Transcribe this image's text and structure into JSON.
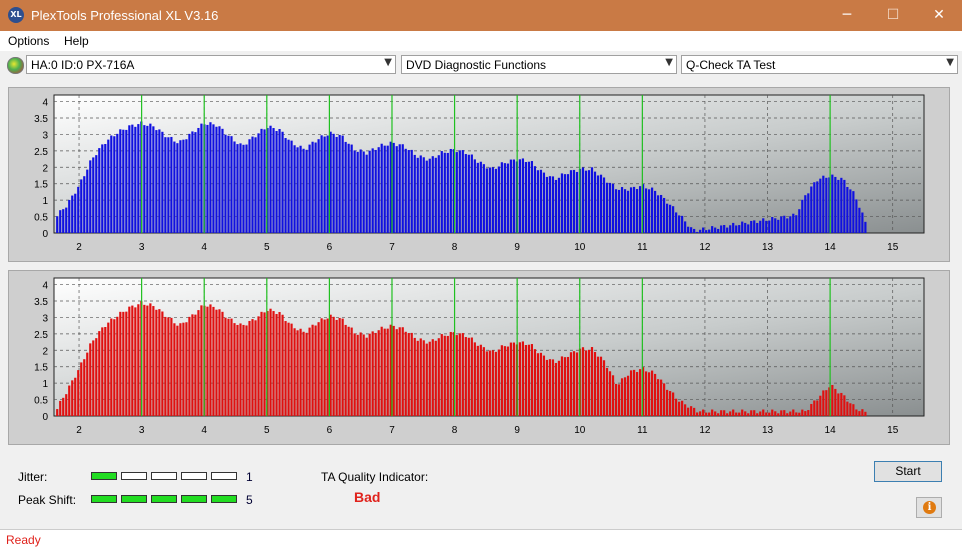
{
  "window": {
    "title": "PlexTools Professional XL V3.16",
    "icon": "XL",
    "minimize": "─",
    "maximize": "☐",
    "close": "✕"
  },
  "menu": {
    "items": [
      "Options",
      "Help"
    ]
  },
  "toolbar": {
    "drive": "HA:0 ID:0  PX-716A",
    "function": "DVD Diagnostic Functions",
    "test": "Q-Check TA Test"
  },
  "chart_data": [
    {
      "type": "bar",
      "series": [
        {
          "color": "#1010e0"
        }
      ],
      "xlim": [
        1.6,
        15.5
      ],
      "ylim": [
        0,
        4.2
      ],
      "x_ticks": [
        2,
        3,
        4,
        5,
        6,
        7,
        8,
        9,
        10,
        11,
        12,
        13,
        14,
        15
      ],
      "y_ticks": [
        0,
        0.5,
        1,
        1.5,
        2,
        2.5,
        3,
        3.5,
        4
      ],
      "y_tick_labels": [
        "0",
        "0.5",
        "1",
        "1.5",
        "2",
        "2.5",
        "3",
        "3.5",
        "4"
      ],
      "markers_x": [
        3,
        4,
        5,
        6,
        7,
        8,
        9,
        10,
        11,
        14
      ],
      "marker_color": "#20c020",
      "grid": true,
      "envelope_x": [
        1.65,
        1.8,
        2.0,
        2.2,
        2.4,
        2.6,
        2.8,
        3.0,
        3.2,
        3.4,
        3.6,
        3.8,
        4.0,
        4.2,
        4.4,
        4.6,
        4.8,
        5.0,
        5.2,
        5.4,
        5.6,
        5.8,
        6.0,
        6.2,
        6.4,
        6.6,
        6.8,
        7.0,
        7.2,
        7.4,
        7.6,
        7.8,
        8.0,
        8.2,
        8.4,
        8.6,
        8.8,
        9.0,
        9.2,
        9.4,
        9.6,
        9.8,
        10.0,
        10.2,
        10.4,
        10.6,
        10.8,
        11.0,
        11.2,
        11.4,
        11.6,
        11.8,
        11.9,
        13.45,
        13.6,
        13.8,
        14.0,
        14.2,
        14.4,
        14.6
      ],
      "envelope_y": [
        0.6,
        0.9,
        1.5,
        2.3,
        2.8,
        3.1,
        3.3,
        3.4,
        3.3,
        3.0,
        2.8,
        3.1,
        3.4,
        3.35,
        3.0,
        2.7,
        3.0,
        3.3,
        3.2,
        2.8,
        2.6,
        2.9,
        3.1,
        3.0,
        2.6,
        2.5,
        2.7,
        2.8,
        2.7,
        2.4,
        2.3,
        2.5,
        2.6,
        2.5,
        2.2,
        2.0,
        2.2,
        2.3,
        2.25,
        1.9,
        1.7,
        1.9,
        2.0,
        2.0,
        1.7,
        1.4,
        1.4,
        1.5,
        1.35,
        1.0,
        0.6,
        0.15,
        0.15,
        0.6,
        1.2,
        1.7,
        1.8,
        1.7,
        1.2,
        0.2
      ]
    },
    {
      "type": "bar",
      "series": [
        {
          "color": "#e01010"
        }
      ],
      "xlim": [
        1.6,
        15.5
      ],
      "ylim": [
        0,
        4.2
      ],
      "x_ticks": [
        2,
        3,
        4,
        5,
        6,
        7,
        8,
        9,
        10,
        11,
        12,
        13,
        14,
        15
      ],
      "y_ticks": [
        0,
        0.5,
        1,
        1.5,
        2,
        2.5,
        3,
        3.5,
        4
      ],
      "y_tick_labels": [
        "0",
        "0.5",
        "1",
        "1.5",
        "2",
        "2.5",
        "3",
        "3.5",
        "4"
      ],
      "markers_x": [
        3,
        4,
        5,
        6,
        7,
        8,
        9,
        10,
        11,
        14
      ],
      "marker_color": "#20c020",
      "grid": true,
      "envelope_x": [
        1.65,
        1.8,
        2.0,
        2.2,
        2.4,
        2.6,
        2.8,
        3.0,
        3.2,
        3.4,
        3.6,
        3.8,
        4.0,
        4.2,
        4.4,
        4.6,
        4.8,
        5.0,
        5.2,
        5.4,
        5.6,
        5.8,
        6.0,
        6.2,
        6.4,
        6.6,
        6.8,
        7.0,
        7.2,
        7.4,
        7.6,
        7.8,
        8.0,
        8.2,
        8.4,
        8.6,
        8.8,
        9.0,
        9.2,
        9.4,
        9.6,
        9.8,
        10.0,
        10.2,
        10.4,
        10.6,
        10.8,
        11.0,
        11.2,
        11.4,
        11.6,
        11.8,
        11.9,
        13.6,
        13.8,
        14.0,
        14.2,
        14.4,
        14.6
      ],
      "envelope_y": [
        0.3,
        0.8,
        1.5,
        2.3,
        2.8,
        3.1,
        3.35,
        3.5,
        3.4,
        3.1,
        2.8,
        3.1,
        3.45,
        3.35,
        3.0,
        2.8,
        3.0,
        3.3,
        3.2,
        2.8,
        2.6,
        2.9,
        3.1,
        3.0,
        2.6,
        2.5,
        2.7,
        2.8,
        2.7,
        2.4,
        2.3,
        2.5,
        2.6,
        2.5,
        2.2,
        2.0,
        2.2,
        2.3,
        2.25,
        1.9,
        1.7,
        1.9,
        2.1,
        2.1,
        1.7,
        1.0,
        1.4,
        1.5,
        1.35,
        0.9,
        0.5,
        0.3,
        0.2,
        0.2,
        0.6,
        1.0,
        0.7,
        0.3,
        0.15
      ]
    }
  ],
  "indicators": {
    "jitter": {
      "label": "Jitter:",
      "level": 1,
      "max": 5,
      "value": "1"
    },
    "peak_shift": {
      "label": "Peak Shift:",
      "level": 5,
      "max": 5,
      "value": "5"
    },
    "ta_quality_label": "TA Quality Indicator:",
    "ta_quality_value": "Bad",
    "ta_quality_color": "#e0221c",
    "meter_on_color": "#22dd22"
  },
  "buttons": {
    "start": "Start",
    "info": "i"
  },
  "status": {
    "text": "Ready"
  }
}
